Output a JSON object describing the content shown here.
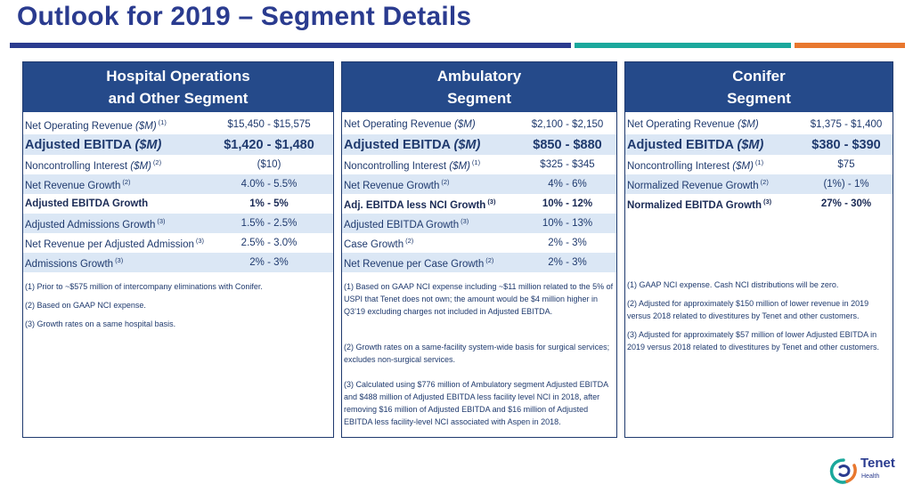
{
  "page": {
    "title": "Outlook for 2019 – Segment Details"
  },
  "colors": {
    "navy": "#2a3b8f",
    "teal": "#1aa89c",
    "orange": "#e8772e",
    "header_blue": "#254a8a",
    "row_shade": "#dbe7f5"
  },
  "hospital": {
    "header_line1": "Hospital Operations",
    "header_line2": "and Other Segment",
    "rows": [
      {
        "label": "Net Operating Revenue",
        "unit": "($M)",
        "sup": "(1)",
        "value": "$15,450 - $15,575"
      },
      {
        "label": "Adjusted EBITDA",
        "unit": "($M)",
        "sup": "",
        "value": "$1,420 - $1,480"
      },
      {
        "label": "Noncontrolling Interest",
        "unit": "($M)",
        "sup": "(2)",
        "value": "($10)"
      },
      {
        "label": "Net Revenue Growth",
        "unit": "",
        "sup": "(2)",
        "value": "4.0% - 5.5%"
      },
      {
        "label": "Adjusted EBITDA Growth",
        "unit": "",
        "sup": "",
        "value": "1% - 5%"
      },
      {
        "label": "Adjusted Admissions Growth",
        "unit": "",
        "sup": "(3)",
        "value": "1.5% - 2.5%"
      },
      {
        "label": "Net Revenue per Adjusted Admission",
        "unit": "",
        "sup": "(3)",
        "value": "2.5% - 3.0%"
      },
      {
        "label": "Admissions Growth",
        "unit": "",
        "sup": "(3)",
        "value": "2% - 3%"
      }
    ],
    "notes": [
      "(1) Prior to ~$575 million of intercompany eliminations with Conifer.",
      "(2) Based on GAAP NCI expense.",
      "(3) Growth rates on a same hospital basis."
    ]
  },
  "ambulatory": {
    "header_line1": "Ambulatory",
    "header_line2": "Segment",
    "rows": [
      {
        "label": "Net Operating Revenue",
        "unit": "($M)",
        "sup": "",
        "value": "$2,100 - $2,150"
      },
      {
        "label": "Adjusted EBITDA",
        "unit": "($M)",
        "sup": "",
        "value": "$850 - $880"
      },
      {
        "label": "Noncontrolling Interest",
        "unit": "($M)",
        "sup": "(1)",
        "value": "$325 - $345"
      },
      {
        "label": "Net Revenue Growth",
        "unit": "",
        "sup": "(2)",
        "value": "4% - 6%"
      },
      {
        "label": "Adj. EBITDA less NCI Growth",
        "unit": "",
        "sup": "(3)",
        "value": "10% - 12%"
      },
      {
        "label": "Adjusted EBITDA Growth",
        "unit": "",
        "sup": "(3)",
        "value": "10% - 13%"
      },
      {
        "label": "Case Growth",
        "unit": "",
        "sup": "(2)",
        "value": "2% - 3%"
      },
      {
        "label": "Net Revenue per Case Growth",
        "unit": "",
        "sup": "(2)",
        "value": "2% - 3%"
      }
    ],
    "notes": [
      "(1) Based on GAAP NCI expense including ~$11 million related to the 5% of USPI that Tenet does not own; the amount would be $4 million higher in Q3’19 excluding charges not included in Adjusted EBITDA.",
      "(2) Growth rates on a same-facility system-wide basis for surgical services; excludes non-surgical services.",
      "(3) Calculated using $776 million of Ambulatory segment Adjusted EBITDA and $488 million of Adjusted EBITDA less facility level NCI in 2018, after removing $16 million of Adjusted EBITDA and $16 million of Adjusted EBITDA less facility-level NCI associated with Aspen in 2018."
    ]
  },
  "conifer": {
    "header_line1": "Conifer",
    "header_line2": "Segment",
    "rows": [
      {
        "label": "Net Operating Revenue",
        "unit": "($M)",
        "sup": "",
        "value": "$1,375 - $1,400"
      },
      {
        "label": "Adjusted EBITDA",
        "unit": "($M)",
        "sup": "",
        "value": "$380 - $390"
      },
      {
        "label": "Noncontrolling Interest",
        "unit": "($M)",
        "sup": "(1)",
        "value": "$75"
      },
      {
        "label": "Normalized Revenue Growth",
        "unit": "",
        "sup": "(2)",
        "value": "(1%) - 1%"
      },
      {
        "label": "Normalized EBITDA Growth",
        "unit": "",
        "sup": "(3)",
        "value": "27% - 30%"
      }
    ],
    "notes": [
      "(1) GAAP NCI expense.  Cash NCI distributions will be zero.",
      "(2) Adjusted for approximately $150 million of lower revenue in 2019 versus 2018 related to divestitures by Tenet and other customers.",
      "(3) Adjusted for approximately $57 million of lower Adjusted EBITDA in 2019 versus 2018 related to divestitures by Tenet and other customers."
    ]
  },
  "logo": {
    "name": "Tenet",
    "sub": "Health"
  }
}
